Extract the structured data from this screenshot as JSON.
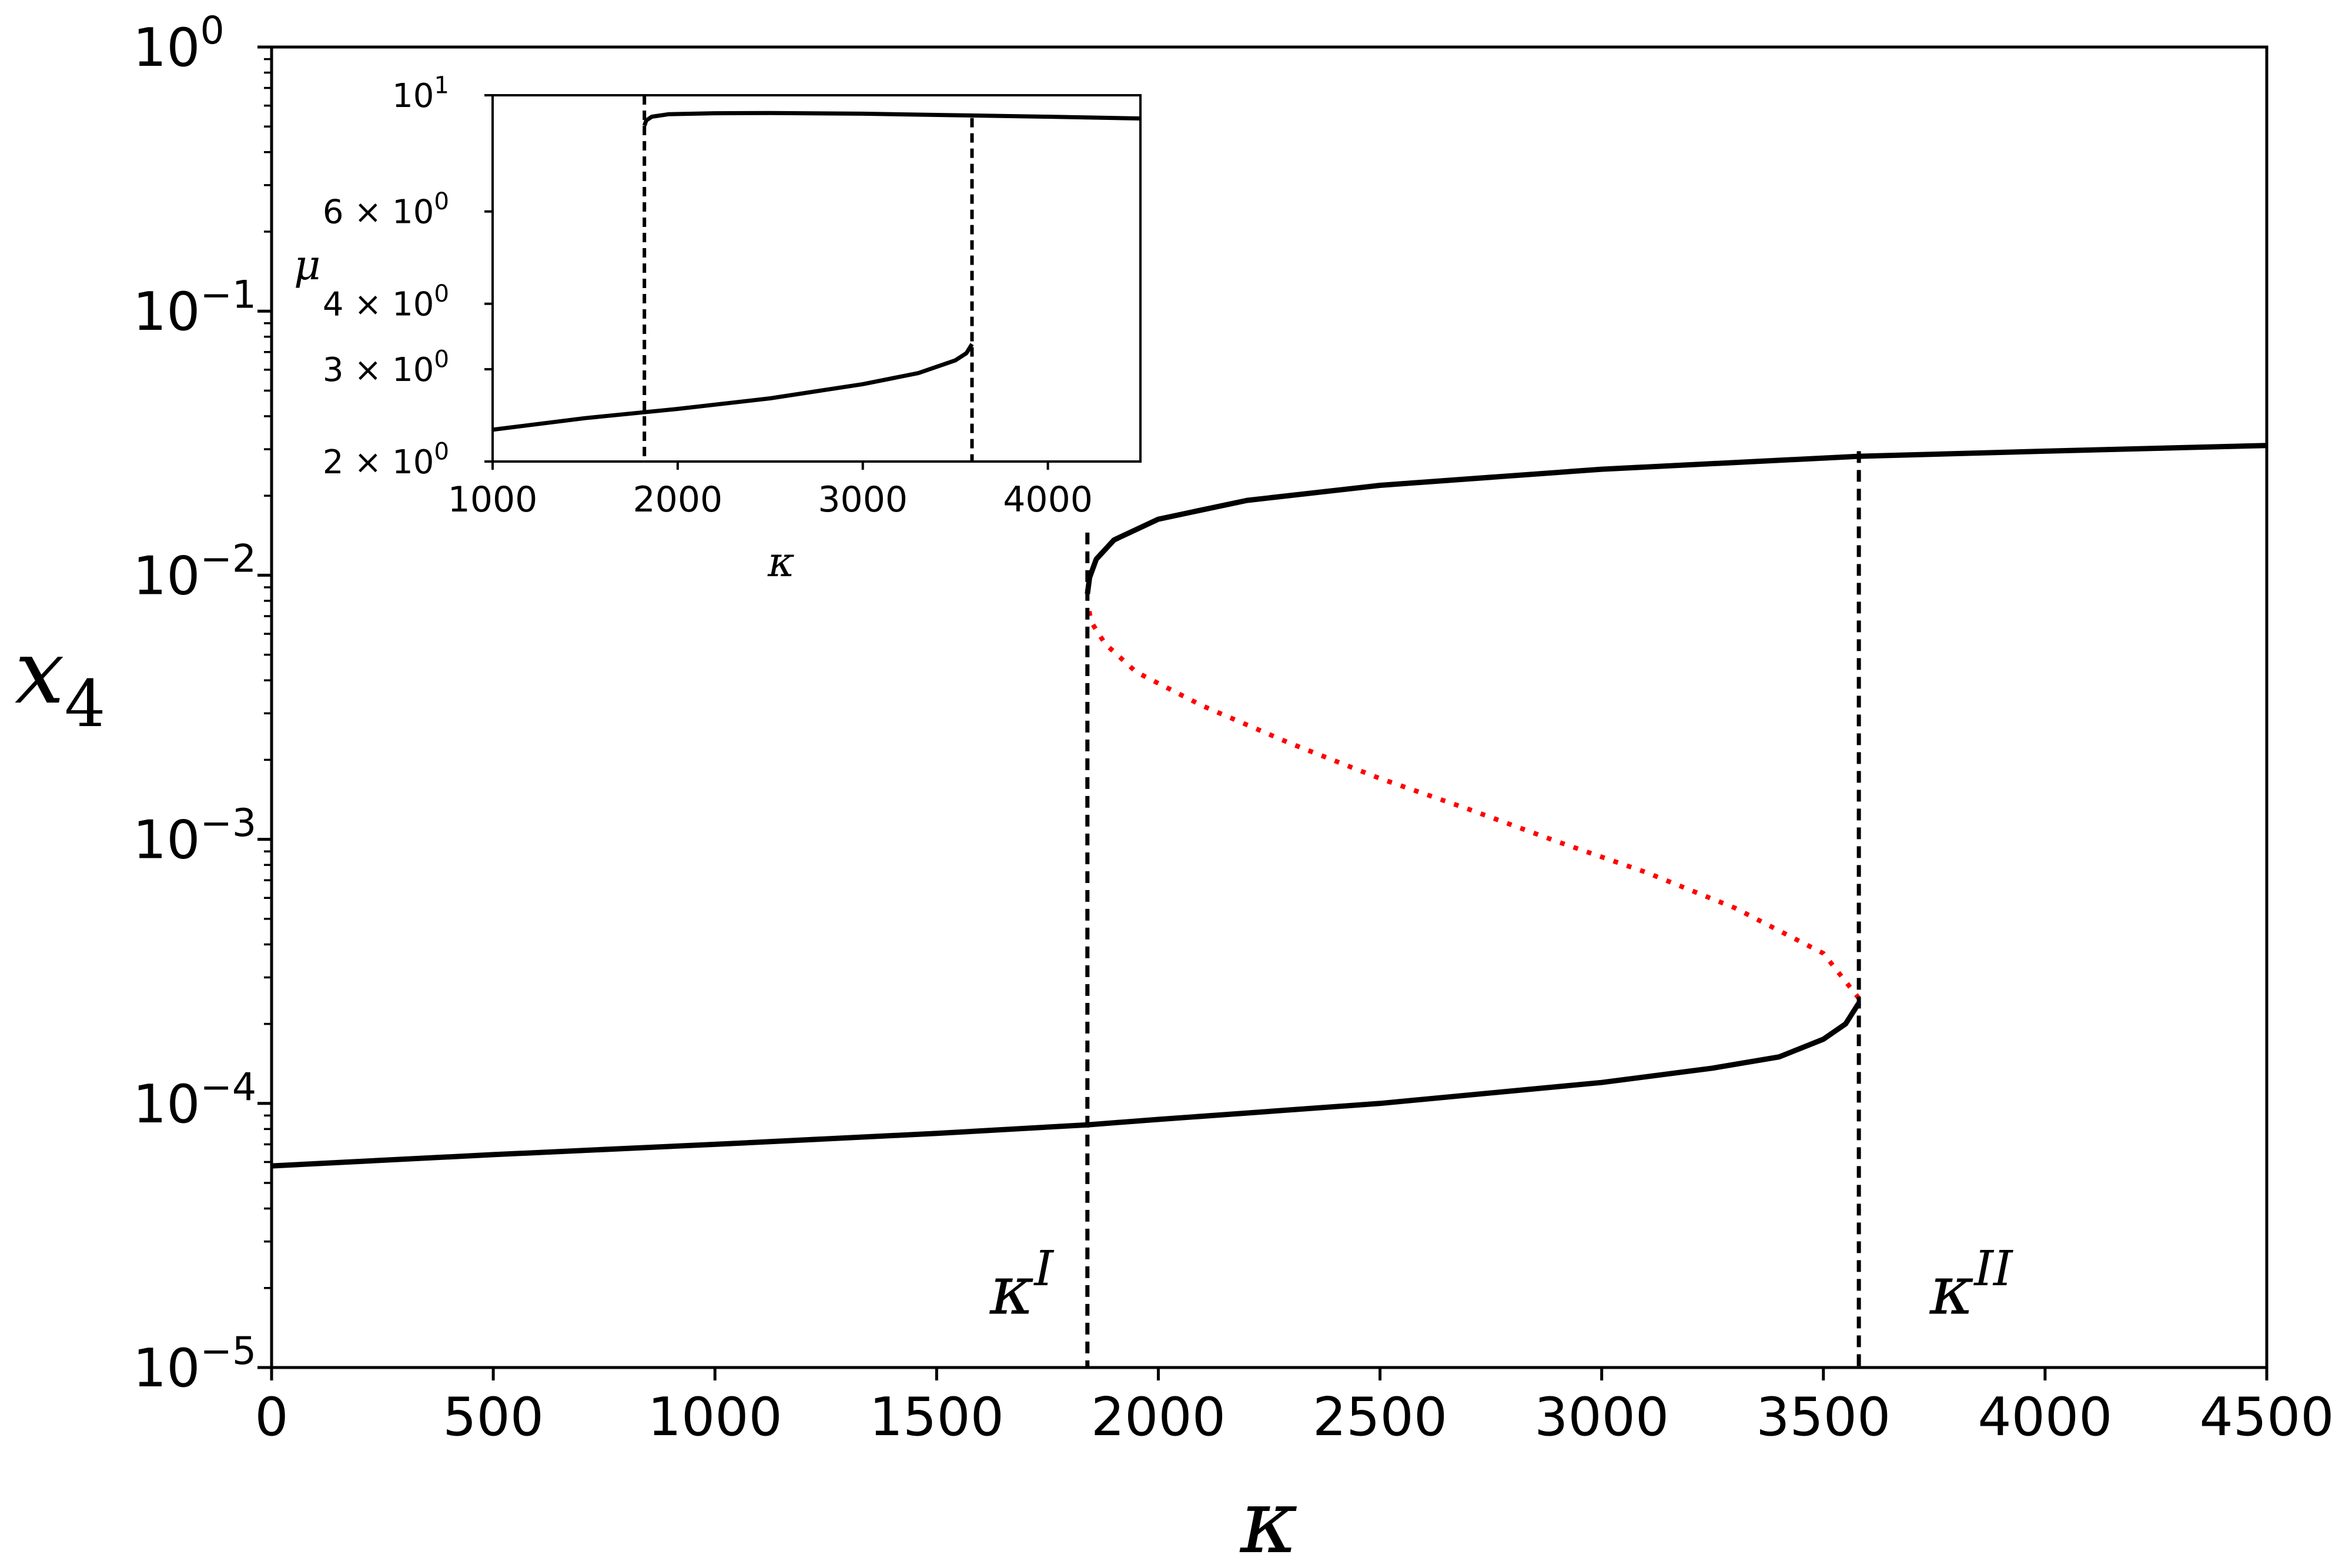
{
  "chart_data": [
    {
      "type": "line",
      "id": "main",
      "xlabel": "κ",
      "ylabel_base": "x",
      "ylabel_sub": "4",
      "xlim": [
        0,
        4500
      ],
      "ylim": [
        1e-05,
        1
      ],
      "yscale": "log",
      "xticks": [
        0,
        500,
        1000,
        1500,
        2000,
        2500,
        3000,
        3500,
        4000,
        4500
      ],
      "xtick_labels": [
        "0",
        "500",
        "1000",
        "1500",
        "2000",
        "2500",
        "3000",
        "3500",
        "4000",
        "4500"
      ],
      "yticks": [
        {
          "value": 1,
          "base": "10",
          "exp": "0"
        },
        {
          "value": 0.1,
          "base": "10",
          "exp": "−1"
        },
        {
          "value": 0.01,
          "base": "10",
          "exp": "−2"
        },
        {
          "value": 0.001,
          "base": "10",
          "exp": "−3"
        },
        {
          "value": 0.0001,
          "base": "10",
          "exp": "−4"
        },
        {
          "value": 1e-05,
          "base": "10",
          "exp": "−5"
        }
      ],
      "annotations": [
        {
          "base": "κ",
          "sup": "I",
          "x": 1620,
          "y": 1.6e-05
        },
        {
          "base": "κ",
          "sup": "II",
          "x": 3740,
          "y": 1.6e-05
        }
      ],
      "vlines": [
        {
          "x": 1840,
          "y_top": 0.0145,
          "style": "dashed"
        },
        {
          "x": 3580,
          "y_top": 0.0295,
          "style": "dashed"
        }
      ],
      "series": [
        {
          "style": "solid",
          "color": "#000000",
          "x": [
            0,
            500,
            1000,
            1500,
            1840,
            2000,
            2500,
            3000,
            3250,
            3400,
            3500,
            3550,
            3580
          ],
          "y": [
            5.8e-05,
            6.4e-05,
            7e-05,
            7.7e-05,
            8.3e-05,
            8.7e-05,
            0.0001,
            0.00012,
            0.000136,
            0.00015,
            0.000175,
            0.0002,
            0.00024
          ]
        },
        {
          "style": "dotted",
          "color": "#ff0000",
          "x": [
            3580,
            3500,
            3300,
            3100,
            2900,
            2700,
            2500,
            2300,
            2100,
            1950,
            1880,
            1850,
            1840
          ],
          "y": [
            0.00025,
            0.00037,
            0.00055,
            0.00075,
            0.00098,
            0.0013,
            0.0017,
            0.0023,
            0.0032,
            0.0043,
            0.0055,
            0.0066,
            0.0078
          ]
        },
        {
          "style": "solid",
          "color": "#000000",
          "x": [
            1840,
            1845,
            1860,
            1900,
            2000,
            2200,
            2500,
            3000,
            3580,
            4000,
            4500
          ],
          "y": [
            0.0085,
            0.0098,
            0.0115,
            0.0136,
            0.0163,
            0.0192,
            0.0219,
            0.0252,
            0.0282,
            0.0295,
            0.031
          ]
        }
      ]
    },
    {
      "type": "line",
      "id": "inset",
      "xlabel": "κ",
      "ylabel": "μ",
      "xlim": [
        1000,
        4500
      ],
      "ylim": [
        2,
        10
      ],
      "yscale": "log",
      "xticks": [
        1000,
        2000,
        3000,
        4000
      ],
      "xtick_labels": [
        "1000",
        "2000",
        "3000",
        "4000"
      ],
      "yticks": [
        {
          "value": 10,
          "base": "10",
          "exp": "1"
        },
        {
          "value": 6,
          "label": "6 × 10",
          "exp": "0"
        },
        {
          "value": 4,
          "label": "4 × 10",
          "exp": "0"
        },
        {
          "value": 3,
          "label": "3 × 10",
          "exp": "0"
        },
        {
          "value": 2,
          "label": "2 × 10",
          "exp": "0"
        }
      ],
      "vlines": [
        {
          "x": 1820,
          "y_top": 10,
          "style": "dashed"
        },
        {
          "x": 3590,
          "y_top": 9.05,
          "style": "dashed"
        }
      ],
      "series": [
        {
          "style": "solid",
          "color": "#000000",
          "x": [
            1000,
            1500,
            2000,
            2500,
            3000,
            3300,
            3500,
            3560,
            3590
          ],
          "y": [
            2.3,
            2.42,
            2.52,
            2.64,
            2.81,
            2.95,
            3.12,
            3.22,
            3.35
          ]
        },
        {
          "style": "solid",
          "color": "#000000",
          "x": [
            1820,
            1830,
            1860,
            1950,
            2200,
            2500,
            3000,
            3500,
            4000,
            4500
          ],
          "y": [
            8.75,
            8.95,
            9.1,
            9.2,
            9.24,
            9.25,
            9.22,
            9.16,
            9.1,
            9.03
          ]
        }
      ]
    }
  ]
}
